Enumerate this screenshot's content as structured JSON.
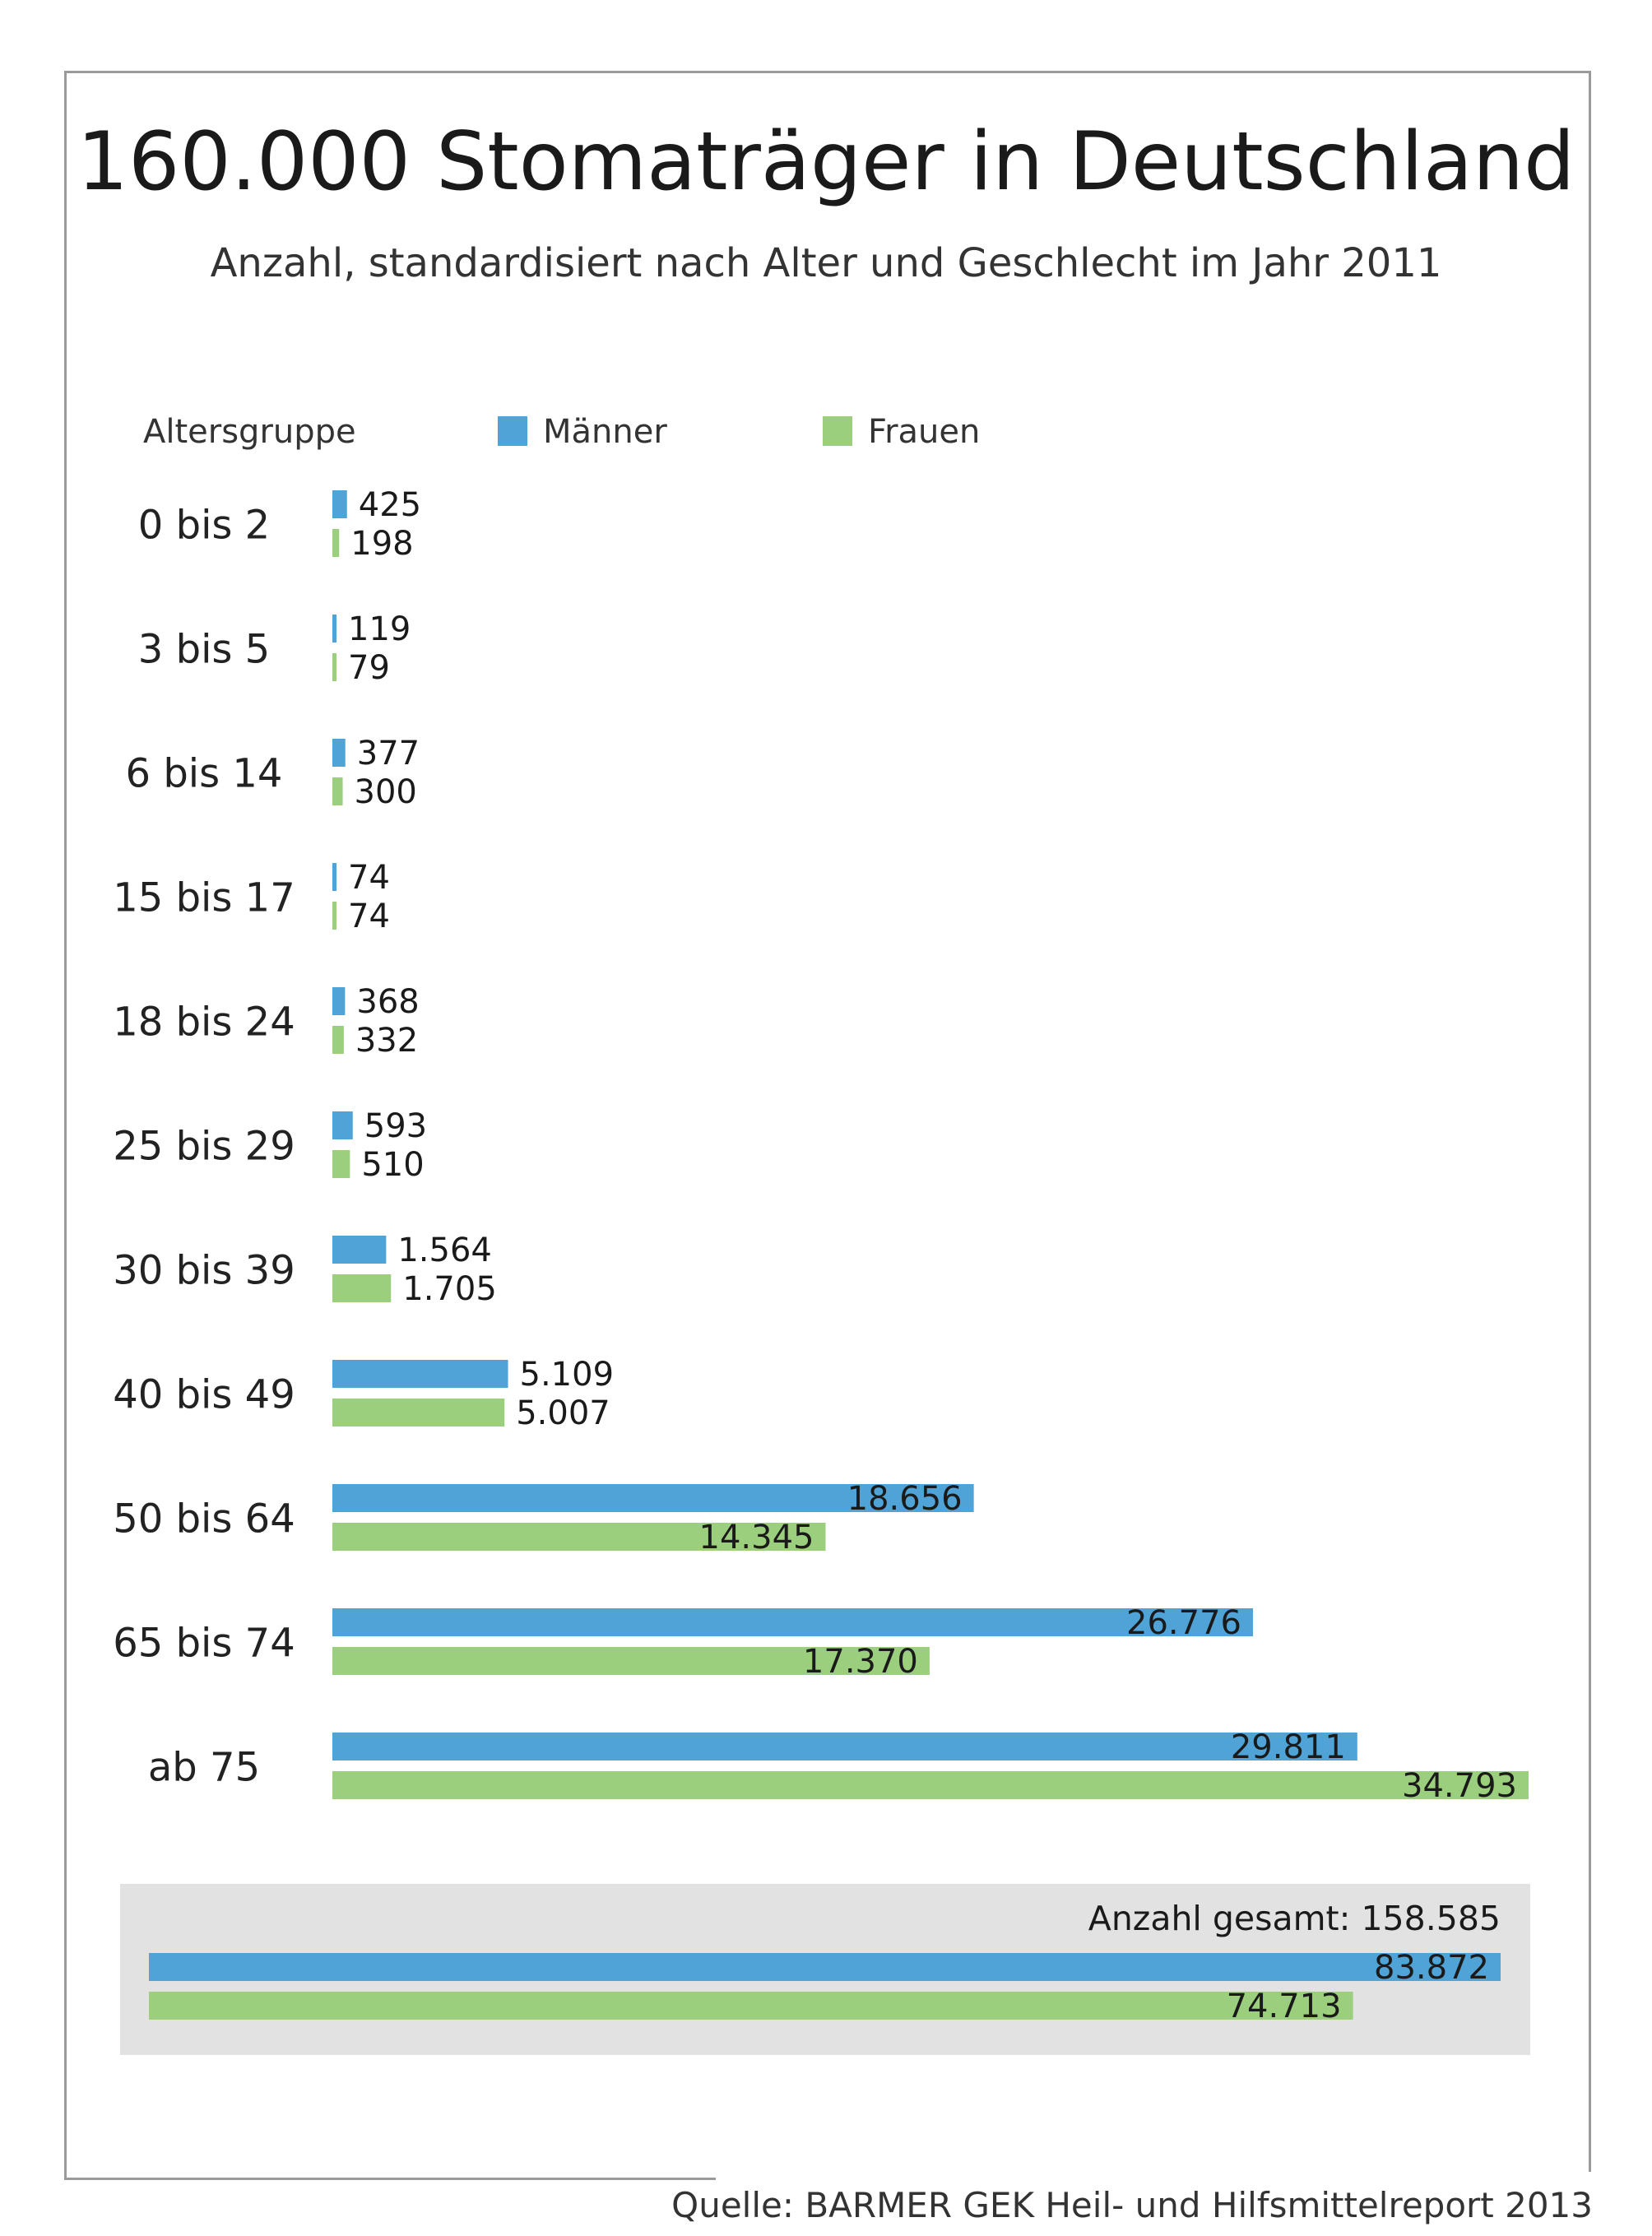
{
  "title": "160.000 Stomaträger in Deutschland",
  "subtitle": "Anzahl, standardisiert nach Alter und Geschlecht im Jahr 2011",
  "legend": {
    "group_label": "Altersgruppe",
    "men": "Männer",
    "women": "Frauen"
  },
  "colors": {
    "men": "#4fa3d6",
    "women": "#9ccf7d",
    "summary_bg": "#e2e2e2"
  },
  "chart_data": {
    "type": "bar",
    "orientation": "horizontal",
    "title": "160.000 Stomaträger in Deutschland",
    "subtitle": "Anzahl, standardisiert nach Alter und Geschlecht im Jahr 2011",
    "categories": [
      "0 bis 2",
      "3 bis 5",
      "6 bis 14",
      "15 bis 17",
      "18 bis 24",
      "25 bis 29",
      "30 bis 39",
      "40 bis 49",
      "50 bis 64",
      "65 bis 74",
      "ab 75"
    ],
    "series": [
      {
        "name": "Männer",
        "values": [
          425,
          119,
          377,
          74,
          368,
          593,
          1564,
          5109,
          18656,
          26776,
          29811
        ],
        "labels": [
          "425",
          "119",
          "377",
          "74",
          "368",
          "593",
          "1.564",
          "5.109",
          "18.656",
          "26.776",
          "29.811"
        ]
      },
      {
        "name": "Frauen",
        "values": [
          198,
          79,
          300,
          74,
          332,
          510,
          1705,
          5007,
          14345,
          17370,
          34793
        ],
        "labels": [
          "198",
          "79",
          "300",
          "74",
          "332",
          "510",
          "1.705",
          "5.007",
          "14.345",
          "17.370",
          "34.793"
        ]
      }
    ],
    "xlim": [
      0,
      34793
    ],
    "grid": false,
    "legend_position": "top",
    "totals": {
      "label": "Anzahl gesamt: 158.585",
      "total": 158585,
      "men": 83872,
      "men_label": "83.872",
      "women": 74713,
      "women_label": "74.713"
    }
  },
  "source": "Quelle: BARMER GEK Heil- und Hilfsmittelreport 2013"
}
